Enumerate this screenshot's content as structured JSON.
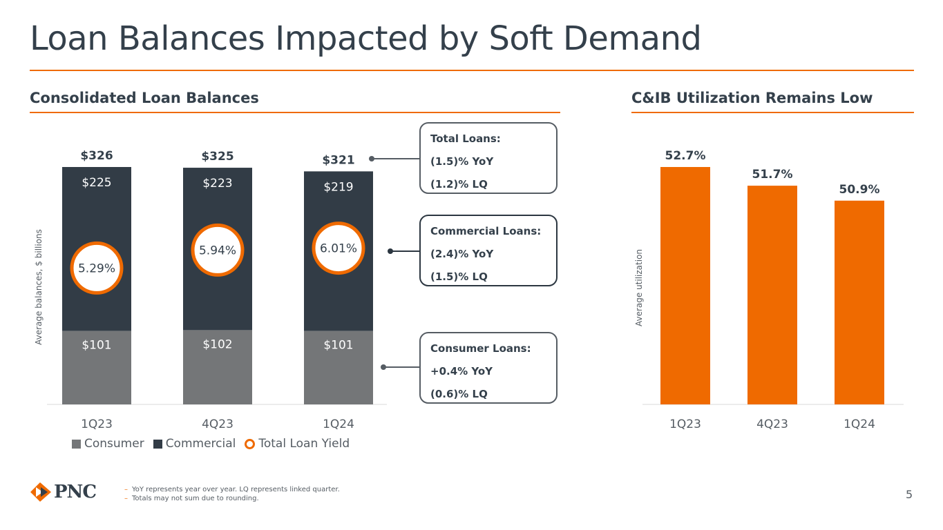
{
  "title": "Loan Balances Impacted by Soft Demand",
  "colors": {
    "accent": "#ef6a00",
    "commercial": "#323c46",
    "consumer": "#747678",
    "text": "#34404b"
  },
  "left_section": {
    "heading": "Consolidated Loan Balances"
  },
  "right_section": {
    "heading": "C&IB Utilization Remains Low"
  },
  "chart_data": [
    {
      "type": "bar",
      "stacked": true,
      "title": "Consolidated Loan Balances",
      "ylabel": "Average balances, $ billions",
      "categories": [
        "1Q23",
        "4Q23",
        "1Q24"
      ],
      "series": [
        {
          "name": "Consumer",
          "values": [
            101,
            102,
            101
          ],
          "labels": [
            "$101",
            "$102",
            "$101"
          ]
        },
        {
          "name": "Commercial",
          "values": [
            225,
            223,
            219
          ],
          "labels": [
            "$225",
            "$223",
            "$219"
          ]
        }
      ],
      "totals": [
        326,
        325,
        321
      ],
      "total_labels": [
        "$326",
        "$325",
        "$321"
      ],
      "overlay": {
        "name": "Total Loan Yield",
        "values": [
          5.29,
          5.94,
          6.01
        ],
        "labels": [
          "5.29%",
          "5.94%",
          "6.01%"
        ]
      },
      "ylim": [
        0,
        326
      ],
      "legend": [
        "Consumer",
        "Commercial",
        "Total Loan Yield"
      ]
    },
    {
      "type": "bar",
      "title": "C&IB Utilization Remains Low",
      "ylabel": "Average utilization",
      "categories": [
        "1Q23",
        "4Q23",
        "1Q24"
      ],
      "values": [
        52.7,
        51.7,
        50.9
      ],
      "labels": [
        "52.7%",
        "51.7%",
        "50.9%"
      ],
      "ylim": [
        40,
        52.7
      ]
    }
  ],
  "callouts": [
    {
      "heading": "Total Loans:",
      "line1": "(1.5)% YoY",
      "line2": "(1.2)% LQ"
    },
    {
      "heading": "Commercial Loans:",
      "line1": "(2.4)% YoY",
      "line2": "(1.5)% LQ"
    },
    {
      "heading": "Consumer Loans:",
      "line1": "+0.4% YoY",
      "line2": "(0.6)% LQ"
    }
  ],
  "footnotes": [
    "YoY represents year over year. LQ represents linked quarter.",
    "Totals may not sum due to rounding."
  ],
  "logo": {
    "name": "pnc-logo",
    "text": "PNC"
  },
  "page_number": "5"
}
